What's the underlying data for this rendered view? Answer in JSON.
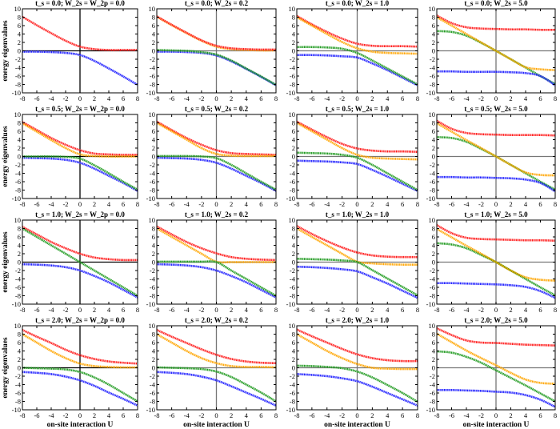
{
  "chart_data": {
    "type": "line",
    "layout": "4x4 grid",
    "xlim": [
      -8,
      8
    ],
    "ylim": [
      -10,
      10
    ],
    "xticks": [
      -8,
      -6,
      -4,
      -2,
      0,
      2,
      4,
      6,
      8
    ],
    "yticks": [
      -10,
      -8,
      -6,
      -4,
      -2,
      0,
      2,
      4,
      6,
      8,
      10
    ],
    "x": [
      -8,
      -6,
      -4,
      -2,
      0,
      2,
      4,
      6,
      8
    ],
    "xlabel": "on-site interaction U",
    "ylabel": "energy eigenvalues",
    "colors": {
      "red": "#ff1a1a",
      "orange": "#ffa500",
      "green": "#1f9a1f",
      "blue": "#2020ff"
    },
    "panels": [
      {
        "title": "t_s = 0.0; W_2s = W_2p = 0.0",
        "series": [
          {
            "color": "red",
            "values": [
              8.1,
              6.1,
              4.2,
              2.4,
              1.0,
              0.4,
              0.2,
              0.2,
              0.2
            ]
          },
          {
            "color": "blue",
            "values": [
              -0.2,
              -0.2,
              -0.3,
              -0.5,
              -1.0,
              -2.4,
              -4.2,
              -6.1,
              -8.1
            ]
          }
        ]
      },
      {
        "title": "t_s = 0.0; W_2s = 0.2",
        "series": [
          {
            "color": "orange",
            "values": [
              8.1,
              6.1,
              4.2,
              2.4,
              1.0,
              0.4,
              0.2,
              0.1,
              0.1
            ]
          },
          {
            "color": "red",
            "values": [
              8.2,
              6.2,
              4.3,
              2.5,
              1.2,
              0.6,
              0.4,
              0.3,
              0.3
            ]
          },
          {
            "color": "blue",
            "values": [
              -0.2,
              -0.2,
              -0.3,
              -0.5,
              -1.1,
              -2.5,
              -4.3,
              -6.2,
              -8.2
            ]
          },
          {
            "color": "green",
            "values": [
              0.2,
              0.1,
              0.0,
              -0.3,
              -0.9,
              -2.3,
              -4.2,
              -6.1,
              -8.1
            ]
          }
        ]
      },
      {
        "title": "t_s = 0.0; W_2s = 1.0",
        "series": [
          {
            "color": "red",
            "values": [
              8.3,
              6.3,
              4.5,
              2.9,
              1.7,
              1.2,
              1.1,
              1.1,
              1.0
            ]
          },
          {
            "color": "orange",
            "values": [
              8.0,
              6.0,
              4.0,
              2.1,
              0.6,
              -0.2,
              -0.5,
              -0.6,
              -0.7
            ]
          },
          {
            "color": "blue",
            "values": [
              -1.0,
              -1.0,
              -1.1,
              -1.3,
              -1.6,
              -3.0,
              -4.6,
              -6.4,
              -8.2
            ]
          },
          {
            "color": "green",
            "values": [
              0.9,
              0.9,
              0.8,
              0.5,
              -0.5,
              -2.3,
              -4.2,
              -6.1,
              -8.0
            ]
          }
        ]
      },
      {
        "title": "t_s = 0.0; W_2s = 5.0",
        "series": [
          {
            "color": "red",
            "values": [
              8.4,
              6.6,
              5.6,
              5.3,
              5.2,
              5.1,
              5.1,
              5.0,
              5.0
            ]
          },
          {
            "color": "green",
            "values": [
              4.7,
              4.5,
              3.6,
              1.9,
              0.0,
              -2.0,
              -4.0,
              -6.0,
              -7.9
            ]
          },
          {
            "color": "orange",
            "values": [
              8.0,
              6.0,
              4.0,
              2.0,
              0.0,
              -2.0,
              -3.9,
              -4.4,
              -4.6
            ]
          },
          {
            "color": "blue",
            "values": [
              -4.9,
              -4.9,
              -5.0,
              -5.0,
              -5.0,
              -5.1,
              -5.3,
              -6.0,
              -8.2
            ]
          }
        ]
      },
      {
        "title": "t_s = 0.5; W_2s = W_2p = 0.0",
        "series": [
          {
            "color": "red",
            "values": [
              8.2,
              6.3,
              4.4,
              2.8,
              1.5,
              0.7,
              0.5,
              0.4,
              0.4
            ]
          },
          {
            "color": "orange",
            "values": [
              7.9,
              5.9,
              3.9,
              2.0,
              0.5,
              0.1,
              0.0,
              0.0,
              0.0
            ]
          },
          {
            "color": "blue",
            "values": [
              -0.3,
              -0.4,
              -0.5,
              -0.8,
              -1.5,
              -2.9,
              -4.6,
              -6.3,
              -8.2
            ]
          },
          {
            "color": "green",
            "values": [
              0.0,
              0.0,
              0.0,
              -0.1,
              -0.5,
              -2.1,
              -4.0,
              -6.0,
              -7.9
            ]
          }
        ]
      },
      {
        "title": "t_s = 0.5; W_2s = 0.2",
        "series": [
          {
            "color": "red",
            "values": [
              8.3,
              6.3,
              4.4,
              2.8,
              1.5,
              0.8,
              0.6,
              0.5,
              0.4
            ]
          },
          {
            "color": "orange",
            "values": [
              8.0,
              6.0,
              4.0,
              2.0,
              0.6,
              0.2,
              0.1,
              0.1,
              0.1
            ]
          },
          {
            "color": "blue",
            "values": [
              -0.3,
              -0.4,
              -0.5,
              -0.8,
              -1.5,
              -2.9,
              -4.6,
              -6.3,
              -8.2
            ]
          },
          {
            "color": "green",
            "values": [
              0.1,
              0.1,
              0.1,
              0.0,
              -0.4,
              -2.0,
              -4.0,
              -6.0,
              -7.9
            ]
          }
        ]
      },
      {
        "title": "t_s = 0.5; W_2s = 1.0",
        "series": [
          {
            "color": "red",
            "values": [
              8.3,
              6.4,
              4.6,
              3.0,
              1.9,
              1.4,
              1.2,
              1.2,
              1.1
            ]
          },
          {
            "color": "orange",
            "values": [
              8.0,
              6.0,
              4.0,
              2.0,
              0.4,
              -0.3,
              -0.5,
              -0.6,
              -0.7
            ]
          },
          {
            "color": "blue",
            "values": [
              -1.0,
              -1.1,
              -1.2,
              -1.4,
              -1.8,
              -3.2,
              -4.8,
              -6.5,
              -8.2
            ]
          },
          {
            "color": "green",
            "values": [
              0.9,
              0.8,
              0.7,
              0.4,
              -0.3,
              -2.0,
              -4.0,
              -6.0,
              -8.0
            ]
          }
        ]
      },
      {
        "title": "t_s = 0.5; W_2s = 5.0",
        "series": [
          {
            "color": "red",
            "values": [
              8.5,
              6.6,
              5.6,
              5.3,
              5.2,
              5.1,
              5.1,
              5.1,
              5.0
            ]
          },
          {
            "color": "green",
            "values": [
              4.6,
              4.4,
              3.5,
              1.8,
              0.0,
              -2.0,
              -4.0,
              -6.0,
              -7.9
            ]
          },
          {
            "color": "orange",
            "values": [
              7.9,
              5.9,
              3.9,
              2.0,
              0.0,
              -2.0,
              -3.8,
              -4.4,
              -4.5
            ]
          },
          {
            "color": "blue",
            "values": [
              -4.9,
              -4.9,
              -5.0,
              -5.0,
              -5.1,
              -5.2,
              -5.5,
              -6.3,
              -8.3
            ]
          }
        ]
      },
      {
        "title": "t_s = 1.0; W_2s = W_2p = 0.0",
        "series": [
          {
            "color": "red",
            "values": [
              8.4,
              6.6,
              4.8,
              3.3,
              2.0,
              1.1,
              0.7,
              0.5,
              0.5
            ]
          },
          {
            "color": "blue",
            "values": [
              -0.5,
              -0.6,
              -0.8,
              -1.2,
              -2.0,
              -3.3,
              -4.8,
              -6.6,
              -8.4
            ]
          },
          {
            "color": "green",
            "values": [
              8.0,
              6.0,
              4.0,
              2.0,
              0.0,
              -2.0,
              -4.0,
              -6.0,
              -8.0
            ]
          }
        ]
      },
      {
        "title": "t_s = 1.0; W_2s = 0.2",
        "series": [
          {
            "color": "red",
            "values": [
              8.5,
              6.6,
              4.8,
              3.3,
              2.1,
              1.2,
              0.8,
              0.6,
              0.5
            ]
          },
          {
            "color": "orange",
            "values": [
              8.0,
              6.0,
              4.0,
              2.0,
              0.1,
              0.0,
              0.0,
              0.0,
              0.0
            ]
          },
          {
            "color": "blue",
            "values": [
              -0.5,
              -0.6,
              -0.8,
              -1.2,
              -2.0,
              -3.3,
              -4.8,
              -6.6,
              -8.4
            ]
          },
          {
            "color": "green",
            "values": [
              0.1,
              0.1,
              0.1,
              0.1,
              0.0,
              -2.0,
              -4.0,
              -6.0,
              -8.0
            ]
          }
        ]
      },
      {
        "title": "t_s = 1.0; W_2s = 1.0",
        "series": [
          {
            "color": "red",
            "values": [
              8.6,
              6.7,
              5.0,
              3.5,
              2.3,
              1.6,
              1.3,
              1.2,
              1.2
            ]
          },
          {
            "color": "orange",
            "values": [
              8.0,
              6.0,
              4.0,
              2.0,
              0.1,
              -0.3,
              -0.5,
              -0.6,
              -0.6
            ]
          },
          {
            "color": "blue",
            "values": [
              -1.1,
              -1.2,
              -1.4,
              -1.7,
              -2.2,
              -3.6,
              -5.1,
              -6.8,
              -8.5
            ]
          },
          {
            "color": "green",
            "values": [
              0.8,
              0.7,
              0.6,
              0.4,
              0.0,
              -1.9,
              -3.9,
              -5.9,
              -7.9
            ]
          }
        ]
      },
      {
        "title": "t_s = 1.0; W_2s = 5.0",
        "series": [
          {
            "color": "red",
            "values": [
              8.8,
              6.9,
              5.8,
              5.5,
              5.4,
              5.3,
              5.2,
              5.2,
              5.1
            ]
          },
          {
            "color": "green",
            "values": [
              4.5,
              4.2,
              3.3,
              1.7,
              0.0,
              -2.0,
              -4.0,
              -6.0,
              -7.9
            ]
          },
          {
            "color": "orange",
            "values": [
              7.9,
              5.9,
              3.9,
              2.0,
              0.0,
              -2.0,
              -3.6,
              -4.2,
              -4.4
            ]
          },
          {
            "color": "blue",
            "values": [
              -5.0,
              -5.0,
              -5.1,
              -5.2,
              -5.3,
              -5.5,
              -5.9,
              -6.9,
              -8.5
            ]
          }
        ]
      },
      {
        "title": "t_s = 2.0; W_2s = W_2p = 0.0",
        "series": [
          {
            "color": "red",
            "values": [
              9.0,
              7.4,
              5.9,
              4.3,
              3.0,
              2.1,
              1.5,
              1.2,
              1.0
            ]
          },
          {
            "color": "orange",
            "values": [
              8.0,
              6.0,
              4.0,
              2.3,
              1.0,
              0.4,
              0.2,
              0.1,
              0.1
            ]
          },
          {
            "color": "green",
            "values": [
              0.0,
              -0.1,
              -0.2,
              -0.4,
              -1.0,
              -2.3,
              -4.0,
              -6.0,
              -8.0
            ]
          },
          {
            "color": "blue",
            "values": [
              -1.0,
              -1.2,
              -1.5,
              -2.1,
              -3.0,
              -4.3,
              -5.9,
              -7.4,
              -9.0
            ]
          }
        ]
      },
      {
        "title": "t_s = 2.0; W_2s = 0.2",
        "series": [
          {
            "color": "red",
            "values": [
              9.0,
              7.4,
              5.9,
              4.4,
              3.1,
              2.1,
              1.5,
              1.2,
              1.1
            ]
          },
          {
            "color": "orange",
            "values": [
              8.0,
              6.0,
              4.0,
              2.3,
              1.1,
              0.4,
              0.2,
              0.2,
              0.1
            ]
          },
          {
            "color": "green",
            "values": [
              0.1,
              0.0,
              -0.1,
              -0.3,
              -0.9,
              -2.2,
              -4.0,
              -5.9,
              -8.0
            ]
          },
          {
            "color": "blue",
            "values": [
              -1.0,
              -1.2,
              -1.5,
              -2.1,
              -3.0,
              -4.4,
              -5.9,
              -7.4,
              -9.0
            ]
          }
        ]
      },
      {
        "title": "t_s = 2.0; W_2s = 1.0",
        "series": [
          {
            "color": "red",
            "values": [
              9.1,
              7.5,
              6.0,
              4.5,
              3.2,
              2.3,
              1.8,
              1.6,
              1.6
            ]
          },
          {
            "color": "orange",
            "values": [
              8.0,
              6.0,
              4.0,
              2.3,
              0.9,
              0.0,
              -0.2,
              -0.3,
              -0.3
            ]
          },
          {
            "color": "green",
            "values": [
              0.5,
              0.4,
              0.2,
              -0.1,
              -0.9,
              -2.3,
              -4.1,
              -6.0,
              -8.1
            ]
          },
          {
            "color": "blue",
            "values": [
              -1.5,
              -1.7,
              -2.0,
              -2.5,
              -3.2,
              -4.5,
              -6.0,
              -7.5,
              -9.0
            ]
          }
        ]
      },
      {
        "title": "t_s = 2.0; W_2s = 5.0",
        "series": [
          {
            "color": "red",
            "values": [
              9.4,
              7.8,
              6.5,
              6.0,
              5.9,
              5.7,
              5.5,
              5.4,
              5.3
            ]
          },
          {
            "color": "orange",
            "values": [
              8.1,
              6.1,
              4.1,
              2.3,
              0.6,
              -1.2,
              -2.8,
              -3.6,
              -3.8
            ]
          },
          {
            "color": "green",
            "values": [
              3.9,
              3.6,
              2.6,
              1.2,
              -0.6,
              -2.4,
              -4.2,
              -6.1,
              -8.0
            ]
          },
          {
            "color": "blue",
            "values": [
              -5.3,
              -5.3,
              -5.4,
              -5.5,
              -5.7,
              -5.9,
              -6.5,
              -7.6,
              -9.3
            ]
          }
        ]
      }
    ]
  }
}
